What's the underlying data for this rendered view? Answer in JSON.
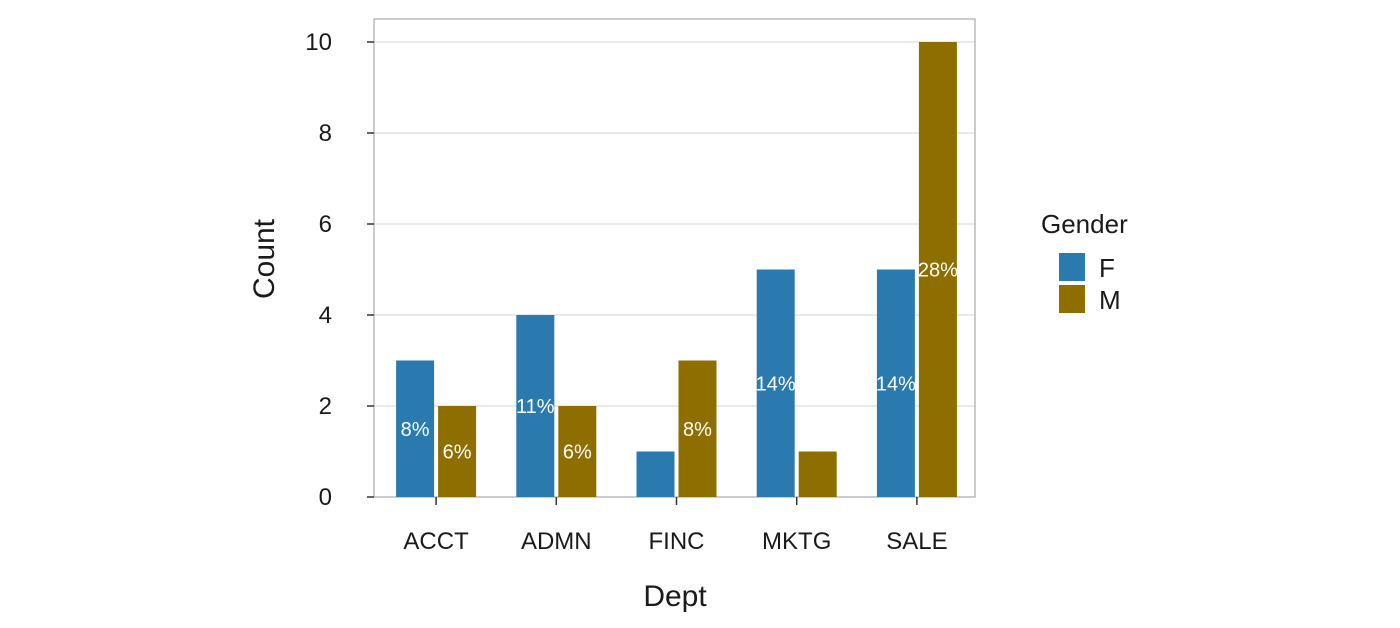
{
  "chart_data": {
    "type": "bar",
    "xlabel": "Dept",
    "ylabel": "Count",
    "categories": [
      "ACCT",
      "ADMN",
      "FINC",
      "MKTG",
      "SALE"
    ],
    "ylim": [
      0,
      10.5
    ],
    "yticks": [
      0,
      2,
      4,
      6,
      8,
      10
    ],
    "grid": true,
    "legend": {
      "title": "Gender",
      "position": "right"
    },
    "series": [
      {
        "name": "F",
        "color": "#2a7ab0",
        "values": [
          3,
          4,
          1,
          5,
          5
        ],
        "labels": [
          "8%",
          "11%",
          "",
          "14%",
          "14%"
        ]
      },
      {
        "name": "M",
        "color": "#8f6e00",
        "values": [
          2,
          2,
          3,
          1,
          10
        ],
        "labels": [
          "6%",
          "6%",
          "8%",
          "",
          "28%"
        ]
      }
    ]
  }
}
